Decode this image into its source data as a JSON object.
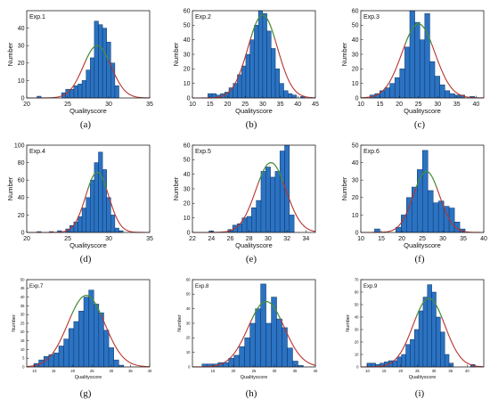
{
  "chart_data": [
    {
      "type": "bar",
      "panel_label": "(a)",
      "exp_label": "Exp.1",
      "xlabel": "Qualityscore",
      "ylabel": "Number",
      "xlim": [
        20,
        35
      ],
      "ylim": [
        0,
        50
      ],
      "xticks": [
        "20",
        "25",
        "30",
        "35"
      ],
      "yticks": [
        "0",
        "10",
        "20",
        "30",
        "40"
      ],
      "bin_width": 0.5,
      "bins": [
        {
          "x": 21.5,
          "y": 1
        },
        {
          "x": 24.5,
          "y": 3
        },
        {
          "x": 25,
          "y": 5
        },
        {
          "x": 25.5,
          "y": 5
        },
        {
          "x": 26,
          "y": 7
        },
        {
          "x": 26.5,
          "y": 8
        },
        {
          "x": 27,
          "y": 10
        },
        {
          "x": 27.5,
          "y": 16
        },
        {
          "x": 28,
          "y": 23
        },
        {
          "x": 28.5,
          "y": 44
        },
        {
          "x": 29,
          "y": 42
        },
        {
          "x": 29.5,
          "y": 40
        },
        {
          "x": 30,
          "y": 32
        },
        {
          "x": 30.5,
          "y": 20
        },
        {
          "x": 31,
          "y": 7
        }
      ],
      "fit": {
        "mean": 28.6,
        "sd": 1.7,
        "peak": 30
      },
      "grid": false
    },
    {
      "type": "bar",
      "panel_label": "(b)",
      "exp_label": "Exp.2",
      "xlabel": "Qualityscore",
      "ylabel": "Number",
      "xlim": [
        10,
        45
      ],
      "ylim": [
        0,
        60
      ],
      "xticks": [
        "10",
        "15",
        "20",
        "25",
        "30",
        "35",
        "40",
        "45"
      ],
      "yticks": [
        "0",
        "10",
        "20",
        "30",
        "40",
        "50",
        "60"
      ],
      "bin_width": 1.2,
      "bins": [
        {
          "x": 15,
          "y": 3
        },
        {
          "x": 16.2,
          "y": 3
        },
        {
          "x": 17.4,
          "y": 2
        },
        {
          "x": 18.6,
          "y": 3
        },
        {
          "x": 19.8,
          "y": 4
        },
        {
          "x": 21,
          "y": 7
        },
        {
          "x": 22.2,
          "y": 10
        },
        {
          "x": 23.4,
          "y": 16
        },
        {
          "x": 24.6,
          "y": 22
        },
        {
          "x": 25.8,
          "y": 30
        },
        {
          "x": 27,
          "y": 40
        },
        {
          "x": 28.2,
          "y": 50
        },
        {
          "x": 29.4,
          "y": 60
        },
        {
          "x": 30.6,
          "y": 58
        },
        {
          "x": 31.8,
          "y": 46
        },
        {
          "x": 33,
          "y": 34
        },
        {
          "x": 34.2,
          "y": 20
        },
        {
          "x": 35.4,
          "y": 10
        },
        {
          "x": 36.6,
          "y": 5
        },
        {
          "x": 37.8,
          "y": 3
        },
        {
          "x": 39,
          "y": 2
        },
        {
          "x": 41.4,
          "y": 1
        }
      ],
      "fit": {
        "mean": 30,
        "sd": 4.2,
        "peak": 57
      },
      "grid": false
    },
    {
      "type": "bar",
      "panel_label": "(c)",
      "exp_label": "Exp.3",
      "xlabel": "Qualityscore",
      "ylabel": "Number",
      "xlim": [
        10,
        42
      ],
      "ylim": [
        0,
        60
      ],
      "xticks": [
        "10",
        "15",
        "20",
        "25",
        "30",
        "35",
        "40"
      ],
      "yticks": [
        "0",
        "10",
        "20",
        "30",
        "40",
        "50",
        "60"
      ],
      "bin_width": 1.3,
      "bins": [
        {
          "x": 13,
          "y": 2
        },
        {
          "x": 14.3,
          "y": 3
        },
        {
          "x": 15.6,
          "y": 5
        },
        {
          "x": 16.9,
          "y": 7
        },
        {
          "x": 18.2,
          "y": 10
        },
        {
          "x": 19.5,
          "y": 14
        },
        {
          "x": 20.8,
          "y": 20
        },
        {
          "x": 22.1,
          "y": 35
        },
        {
          "x": 23.4,
          "y": 60
        },
        {
          "x": 24.7,
          "y": 52
        },
        {
          "x": 26,
          "y": 40
        },
        {
          "x": 27.3,
          "y": 58
        },
        {
          "x": 28.6,
          "y": 25
        },
        {
          "x": 29.9,
          "y": 15
        },
        {
          "x": 31.2,
          "y": 9
        },
        {
          "x": 32.5,
          "y": 5
        },
        {
          "x": 33.8,
          "y": 3
        },
        {
          "x": 35.1,
          "y": 2
        },
        {
          "x": 36.4,
          "y": 2
        },
        {
          "x": 39,
          "y": 1
        }
      ],
      "fit": {
        "mean": 25,
        "sd": 4.3,
        "peak": 51
      },
      "grid": false
    },
    {
      "type": "bar",
      "panel_label": "(d)",
      "exp_label": "Exp.4",
      "xlabel": "Qualityscore",
      "ylabel": "Number",
      "xlim": [
        20,
        35
      ],
      "ylim": [
        0,
        100
      ],
      "xticks": [
        "20",
        "25",
        "30",
        "35"
      ],
      "yticks": [
        "0",
        "20",
        "40",
        "60",
        "80",
        "100"
      ],
      "bin_width": 0.5,
      "bins": [
        {
          "x": 21.5,
          "y": 1
        },
        {
          "x": 23,
          "y": 1
        },
        {
          "x": 24,
          "y": 2
        },
        {
          "x": 25,
          "y": 4
        },
        {
          "x": 25.5,
          "y": 8
        },
        {
          "x": 26,
          "y": 12
        },
        {
          "x": 26.5,
          "y": 18
        },
        {
          "x": 27,
          "y": 28
        },
        {
          "x": 27.5,
          "y": 40
        },
        {
          "x": 28,
          "y": 60
        },
        {
          "x": 28.5,
          "y": 80
        },
        {
          "x": 29,
          "y": 92
        },
        {
          "x": 29.5,
          "y": 72
        },
        {
          "x": 30,
          "y": 40
        },
        {
          "x": 30.5,
          "y": 20
        },
        {
          "x": 31,
          "y": 5
        },
        {
          "x": 31.5,
          "y": 2
        }
      ],
      "fit": {
        "mean": 28.6,
        "sd": 1.4,
        "peak": 69
      },
      "grid": false
    },
    {
      "type": "bar",
      "panel_label": "(e)",
      "exp_label": "Exp.5",
      "xlabel": "Qualityscore",
      "ylabel": "Number",
      "xlim": [
        22,
        35
      ],
      "ylim": [
        0,
        60
      ],
      "xticks": [
        "22",
        "24",
        "26",
        "28",
        "30",
        "32",
        "34"
      ],
      "yticks": [
        "0",
        "10",
        "20",
        "30",
        "40",
        "50",
        "60"
      ],
      "bin_width": 0.5,
      "bins": [
        {
          "x": 24,
          "y": 1
        },
        {
          "x": 26,
          "y": 2
        },
        {
          "x": 26.5,
          "y": 5
        },
        {
          "x": 27,
          "y": 6
        },
        {
          "x": 27.5,
          "y": 10
        },
        {
          "x": 28,
          "y": 11
        },
        {
          "x": 28.5,
          "y": 17
        },
        {
          "x": 29,
          "y": 22
        },
        {
          "x": 29.5,
          "y": 42
        },
        {
          "x": 30,
          "y": 45
        },
        {
          "x": 30.5,
          "y": 38
        },
        {
          "x": 31,
          "y": 42
        },
        {
          "x": 31.5,
          "y": 56
        },
        {
          "x": 32,
          "y": 60
        },
        {
          "x": 32.5,
          "y": 12
        }
      ],
      "fit": {
        "mean": 30.3,
        "sd": 1.6,
        "peak": 48
      },
      "grid": false
    },
    {
      "type": "bar",
      "panel_label": "(f)",
      "exp_label": "Exp.6",
      "xlabel": "Qualityscore",
      "ylabel": "Number",
      "xlim": [
        10,
        40
      ],
      "ylim": [
        0,
        50
      ],
      "xticks": [
        "10",
        "15",
        "20",
        "25",
        "30",
        "35",
        "40"
      ],
      "yticks": [
        "0",
        "10",
        "20",
        "30",
        "40",
        "50"
      ],
      "bin_width": 1.3,
      "bins": [
        {
          "x": 14,
          "y": 2
        },
        {
          "x": 19.2,
          "y": 3
        },
        {
          "x": 20.5,
          "y": 10
        },
        {
          "x": 21.8,
          "y": 20
        },
        {
          "x": 23.1,
          "y": 26
        },
        {
          "x": 24.4,
          "y": 36
        },
        {
          "x": 25.7,
          "y": 47
        },
        {
          "x": 27,
          "y": 24
        },
        {
          "x": 28.3,
          "y": 17
        },
        {
          "x": 29.6,
          "y": 18
        },
        {
          "x": 30.9,
          "y": 15
        },
        {
          "x": 32.2,
          "y": 14
        },
        {
          "x": 33.5,
          "y": 6
        },
        {
          "x": 34.8,
          "y": 2
        }
      ],
      "fit": {
        "mean": 26,
        "sd": 3.2,
        "peak": 35
      },
      "grid": false
    },
    {
      "type": "bar",
      "panel_label": "(g)",
      "exp_label": "Exp.7",
      "xlabel": "Qualityscore",
      "ylabel": "Number",
      "xlim": [
        8,
        40
      ],
      "ylim": [
        0,
        50
      ],
      "xticks": [
        "10",
        "15",
        "20",
        "25",
        "30",
        "35",
        "40"
      ],
      "yticks": [
        "0",
        "5",
        "10",
        "15",
        "20",
        "25",
        "30",
        "35",
        "40",
        "45",
        "50"
      ],
      "bin_width": 1.3,
      "bins": [
        {
          "x": 10.5,
          "y": 2
        },
        {
          "x": 11.8,
          "y": 4
        },
        {
          "x": 13.1,
          "y": 6
        },
        {
          "x": 14.4,
          "y": 7
        },
        {
          "x": 15.7,
          "y": 8
        },
        {
          "x": 17,
          "y": 12
        },
        {
          "x": 18.3,
          "y": 16
        },
        {
          "x": 19.6,
          "y": 22
        },
        {
          "x": 20.9,
          "y": 26
        },
        {
          "x": 22.2,
          "y": 32
        },
        {
          "x": 23.5,
          "y": 40
        },
        {
          "x": 24.8,
          "y": 44
        },
        {
          "x": 26.1,
          "y": 36
        },
        {
          "x": 27.4,
          "y": 31
        },
        {
          "x": 28.7,
          "y": 21
        },
        {
          "x": 30,
          "y": 11
        },
        {
          "x": 31.3,
          "y": 4
        },
        {
          "x": 32.6,
          "y": 1
        }
      ],
      "fit": {
        "mean": 23.5,
        "sd": 4.8,
        "peak": 41
      },
      "grid": false
    },
    {
      "type": "bar",
      "panel_label": "(h)",
      "exp_label": "Exp.8",
      "xlabel": "Qualityscore",
      "ylabel": "Number",
      "xlim": [
        10,
        40
      ],
      "ylim": [
        0,
        60
      ],
      "xticks": [
        "15",
        "20",
        "25",
        "30",
        "35",
        "40"
      ],
      "yticks": [
        "0",
        "10",
        "20",
        "30",
        "40",
        "50",
        "60"
      ],
      "bin_width": 1.3,
      "bins": [
        {
          "x": 13,
          "y": 2
        },
        {
          "x": 14.3,
          "y": 2
        },
        {
          "x": 15.6,
          "y": 2
        },
        {
          "x": 16.9,
          "y": 3
        },
        {
          "x": 18.2,
          "y": 3
        },
        {
          "x": 19.5,
          "y": 6
        },
        {
          "x": 20.8,
          "y": 8
        },
        {
          "x": 22.1,
          "y": 14
        },
        {
          "x": 23.4,
          "y": 20
        },
        {
          "x": 24.7,
          "y": 30
        },
        {
          "x": 26,
          "y": 40
        },
        {
          "x": 27.3,
          "y": 57
        },
        {
          "x": 28.6,
          "y": 30
        },
        {
          "x": 29.9,
          "y": 48
        },
        {
          "x": 31.2,
          "y": 33
        },
        {
          "x": 32.5,
          "y": 27
        },
        {
          "x": 33.8,
          "y": 13
        },
        {
          "x": 35.1,
          "y": 4
        },
        {
          "x": 36.4,
          "y": 1
        }
      ],
      "fit": {
        "mean": 28,
        "sd": 4.4,
        "peak": 45
      },
      "grid": false
    },
    {
      "type": "bar",
      "panel_label": "(i)",
      "exp_label": "Exp.9",
      "xlabel": "Qualityscore",
      "ylabel": "Number",
      "xlim": [
        8,
        45
      ],
      "ylim": [
        0,
        70
      ],
      "xticks": [
        "10",
        "15",
        "20",
        "25",
        "30",
        "35",
        "40"
      ],
      "yticks": [
        "0",
        "10",
        "20",
        "30",
        "40",
        "50",
        "60",
        "70"
      ],
      "bin_width": 1.3,
      "bins": [
        {
          "x": 10.5,
          "y": 3
        },
        {
          "x": 11.8,
          "y": 3
        },
        {
          "x": 13.1,
          "y": 2
        },
        {
          "x": 14.4,
          "y": 3
        },
        {
          "x": 15.7,
          "y": 4
        },
        {
          "x": 17,
          "y": 5
        },
        {
          "x": 18.3,
          "y": 5
        },
        {
          "x": 19.6,
          "y": 8
        },
        {
          "x": 20.9,
          "y": 10
        },
        {
          "x": 22.2,
          "y": 18
        },
        {
          "x": 23.5,
          "y": 22
        },
        {
          "x": 24.8,
          "y": 30
        },
        {
          "x": 26.1,
          "y": 45
        },
        {
          "x": 27.4,
          "y": 56
        },
        {
          "x": 28.7,
          "y": 66
        },
        {
          "x": 30,
          "y": 60
        },
        {
          "x": 31.3,
          "y": 40
        },
        {
          "x": 32.6,
          "y": 28
        },
        {
          "x": 33.9,
          "y": 10
        },
        {
          "x": 35.2,
          "y": 3
        },
        {
          "x": 41.7,
          "y": 2
        }
      ],
      "fit": {
        "mean": 28.5,
        "sd": 4.8,
        "peak": 55
      },
      "grid": false
    }
  ],
  "colors": {
    "bar_fill": "#2b72c2",
    "bar_edge": "#0b3566",
    "fit_line": "#b8332f",
    "fit_line_peak": "#3c9a3c",
    "axis": "#222222",
    "text": "#111111"
  }
}
